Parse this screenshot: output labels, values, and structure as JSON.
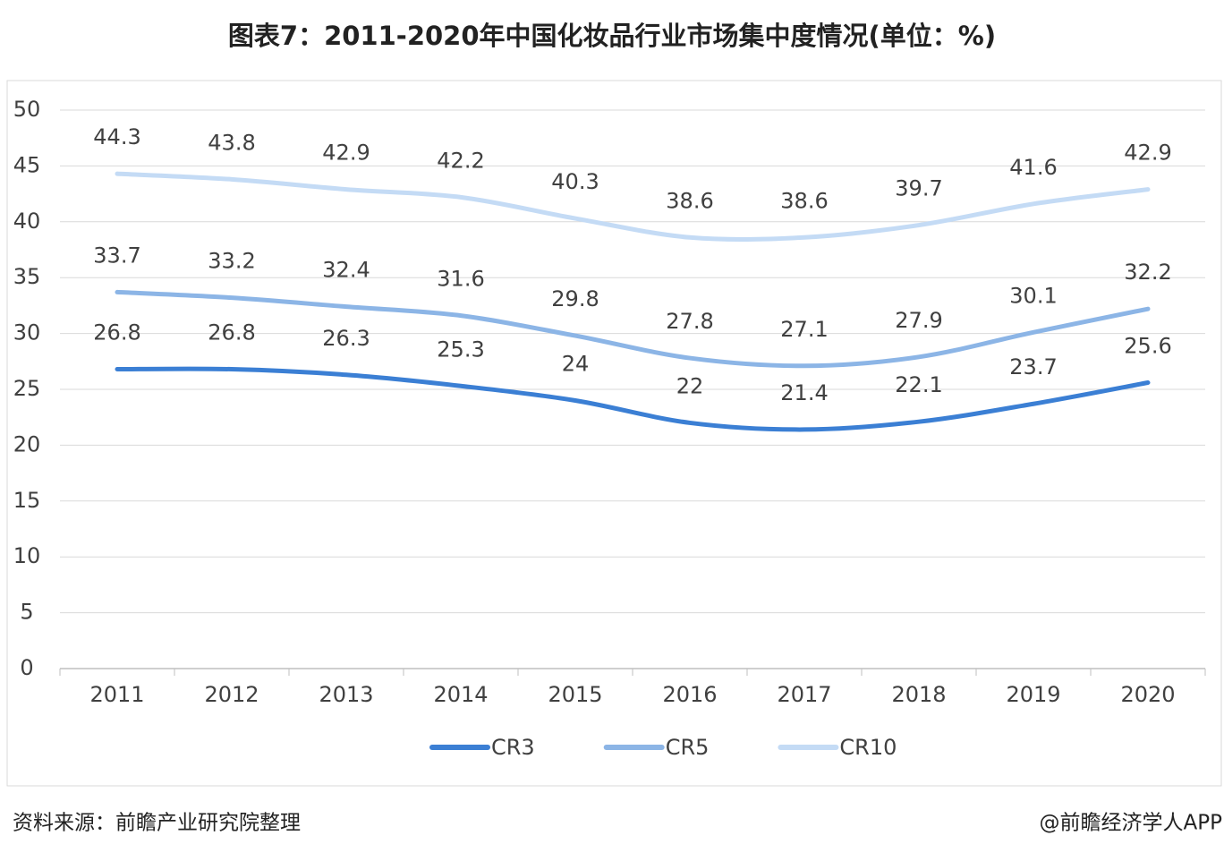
{
  "chart_data": {
    "type": "line",
    "title": "图表7：2011-2020年中国化妆品行业市场集中度情况(单位：%)",
    "categories": [
      "2011",
      "2012",
      "2013",
      "2014",
      "2015",
      "2016",
      "2017",
      "2018",
      "2019",
      "2020"
    ],
    "series": [
      {
        "name": "CR3",
        "color": "#3b7fd4",
        "values": [
          26.8,
          26.8,
          26.3,
          25.3,
          24,
          22,
          21.4,
          22.1,
          23.7,
          25.6
        ]
      },
      {
        "name": "CR5",
        "color": "#8cb5e6",
        "values": [
          33.7,
          33.2,
          32.4,
          31.6,
          29.8,
          27.8,
          27.1,
          27.9,
          30.1,
          32.2
        ]
      },
      {
        "name": "CR10",
        "color": "#c4dbf5",
        "values": [
          44.3,
          43.8,
          42.9,
          42.2,
          40.3,
          38.6,
          38.6,
          39.7,
          41.6,
          42.9
        ]
      }
    ],
    "ylim": [
      0,
      50
    ],
    "yticks": [
      0,
      5,
      10,
      15,
      20,
      25,
      30,
      35,
      40,
      45,
      50
    ],
    "grid": true,
    "legend": "bottom",
    "source": "资料来源：前瞻产业研究院整理",
    "credit": "@前瞻经济学人APP"
  }
}
